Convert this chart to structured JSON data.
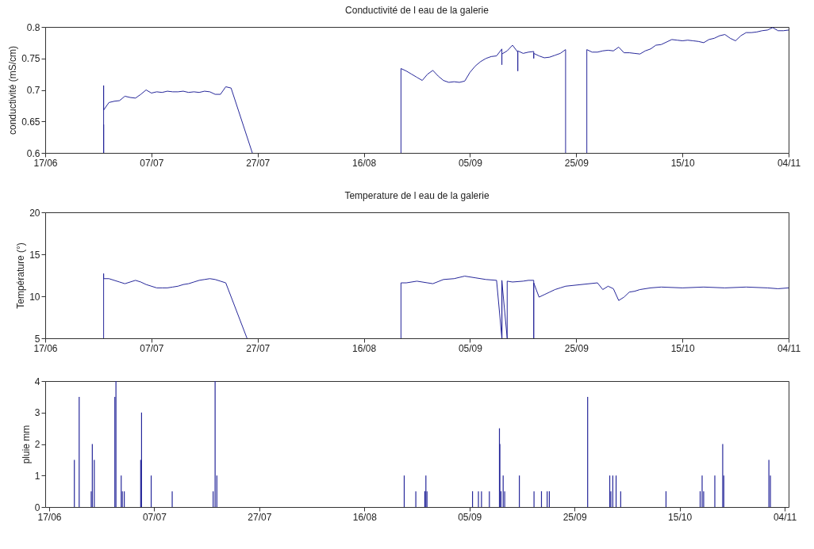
{
  "chart_data": [
    {
      "type": "line",
      "title": "Conductivité de l eau de la galerie",
      "ylabel": "conductivité (mS/cm)",
      "xlim": [
        "--06-17",
        "--11-04"
      ],
      "xticks": [
        {
          "value": "--06-17",
          "label": "17/06"
        },
        {
          "value": "--07-07",
          "label": "07/07"
        },
        {
          "value": "--07-27",
          "label": "27/07"
        },
        {
          "value": "--08-16",
          "label": "16/08"
        },
        {
          "value": "--09-05",
          "label": "05/09"
        },
        {
          "value": "--09-25",
          "label": "25/09"
        },
        {
          "value": "--10-15",
          "label": "15/10"
        },
        {
          "value": "--11-04",
          "label": "04/11"
        }
      ],
      "ylim": [
        0.6,
        0.8
      ],
      "yticks": [
        0.6,
        0.65,
        0.7,
        0.75,
        0.8
      ],
      "grid": false,
      "series": [
        {
          "color": "#26279a",
          "x": [
            "--06-28",
            "--06-28",
            "--06-28",
            "--06-28",
            "--06-28",
            "--06-29",
            "--06-30",
            "--07-01",
            "--07-02",
            "--07-03",
            "--07-04",
            "--07-05",
            "--07-06",
            "--07-07",
            "--07-08",
            "--07-09",
            "--07-10",
            "--07-11",
            "--07-12",
            "--07-13",
            "--07-14",
            "--07-15",
            "--07-16",
            "--07-17",
            "--07-18",
            "--07-19",
            "--07-20",
            "--07-21",
            "--07-22",
            "--07-26",
            "--08-01",
            "--08-23",
            "--08-23",
            "--08-24",
            "--08-25",
            "--08-26",
            "--08-27",
            "--08-28",
            "--08-29",
            "--08-30",
            "--08-31",
            "--09-01",
            "--09-02",
            "--09-03",
            "--09-04",
            "--09-05",
            "--09-06",
            "--09-07",
            "--09-08",
            "--09-09",
            "--09-10",
            "--09-11",
            "--09-11",
            "--09-11",
            "--09-12",
            "--09-13",
            "--09-14",
            "--09-14",
            "--09-14",
            "--09-15",
            "--09-16",
            "--09-17",
            "--09-17",
            "--09-17",
            "--09-18",
            "--09-19",
            "--09-20",
            "--09-21",
            "--09-22",
            "--09-23",
            "--09-23",
            "--09-25",
            "--09-27",
            "--09-27",
            "--09-28",
            "--09-29",
            "--09-30",
            "--10-01",
            "--10-02",
            "--10-03",
            "--10-04",
            "--10-05",
            "--10-06",
            "--10-07",
            "--10-08",
            "--10-09",
            "--10-10",
            "--10-11",
            "--10-12",
            "--10-13",
            "--10-14",
            "--10-15",
            "--10-16",
            "--10-17",
            "--10-18",
            "--10-19",
            "--10-20",
            "--10-21",
            "--10-22",
            "--10-23",
            "--10-24",
            "--10-25",
            "--10-26",
            "--10-27",
            "--10-28",
            "--10-29",
            "--10-30",
            "--10-31",
            "--11-01",
            "--11-02",
            "--11-03",
            "--11-04"
          ],
          "values": [
            0.6,
            0.645,
            0.6,
            0.707,
            0.668,
            0.68,
            0.682,
            0.683,
            0.69,
            0.688,
            0.687,
            0.693,
            0.7,
            0.695,
            0.697,
            0.696,
            0.698,
            0.697,
            0.697,
            0.698,
            0.696,
            0.697,
            0.696,
            0.698,
            0.697,
            0.693,
            0.693,
            0.705,
            0.703,
            0.6,
            null,
            0.6,
            0.734,
            0.73,
            0.725,
            0.72,
            0.715,
            0.725,
            0.731,
            0.722,
            0.715,
            0.712,
            0.713,
            0.712,
            0.714,
            0.728,
            0.738,
            0.745,
            0.75,
            0.753,
            0.754,
            0.765,
            0.74,
            0.757,
            0.762,
            0.771,
            0.76,
            0.73,
            0.762,
            0.758,
            0.76,
            0.761,
            0.75,
            0.758,
            0.754,
            0.751,
            0.752,
            0.755,
            0.758,
            0.764,
            0.6,
            null,
            0.6,
            0.764,
            0.76,
            0.76,
            0.762,
            0.763,
            0.762,
            0.768,
            0.759,
            0.759,
            0.758,
            0.757,
            0.762,
            0.765,
            0.771,
            0.772,
            0.776,
            0.78,
            0.779,
            0.778,
            0.779,
            0.778,
            0.777,
            0.775,
            0.78,
            0.782,
            0.786,
            0.788,
            0.782,
            0.778,
            0.786,
            0.791,
            0.791,
            0.792,
            0.794,
            0.795,
            0.799,
            0.794,
            0.794,
            0.795
          ]
        }
      ]
    },
    {
      "type": "line",
      "title": "Temperature de l eau de la galerie",
      "ylabel": "Température (°)",
      "xlim": [
        "--06-17",
        "--11-04"
      ],
      "xticks": [
        {
          "value": "--06-17",
          "label": "17/06"
        },
        {
          "value": "--07-07",
          "label": "07/07"
        },
        {
          "value": "--07-27",
          "label": "27/07"
        },
        {
          "value": "--08-16",
          "label": "16/08"
        },
        {
          "value": "--09-05",
          "label": "05/09"
        },
        {
          "value": "--09-25",
          "label": "25/09"
        },
        {
          "value": "--10-15",
          "label": "15/10"
        },
        {
          "value": "--11-04",
          "label": "04/11"
        }
      ],
      "ylim": [
        5,
        20
      ],
      "yticks": [
        5,
        10,
        15,
        20
      ],
      "grid": false,
      "series": [
        {
          "color": "#26279a",
          "x": [
            "--06-28",
            "--06-28",
            "--06-28",
            "--06-29",
            "--06-30",
            "--07-01",
            "--07-02",
            "--07-03",
            "--07-04",
            "--07-05",
            "--07-06",
            "--07-07",
            "--07-08",
            "--07-09",
            "--07-10",
            "--07-11",
            "--07-12",
            "--07-13",
            "--07-14",
            "--07-15",
            "--07-16",
            "--07-17",
            "--07-18",
            "--07-19",
            "--07-20",
            "--07-21",
            "--07-25",
            "--08-01",
            "--08-23",
            "--08-23",
            "--08-24",
            "--08-26",
            "--08-28",
            "--08-29",
            "--08-31",
            "--09-02",
            "--09-04",
            "--09-06",
            "--09-08",
            "--09-10",
            "--09-11",
            "--09-11",
            "--09-11",
            "--09-11",
            "--09-12",
            "--09-12",
            "--09-13",
            "--09-15",
            "--09-16",
            "--09-17",
            "--09-17",
            "--09-17",
            "--09-18",
            "--09-19",
            "--09-20",
            "--09-21",
            "--09-22",
            "--09-23",
            "--09-29",
            "--09-30",
            "--10-01",
            "--10-02",
            "--10-03",
            "--10-04",
            "--10-05",
            "--10-06",
            "--10-07",
            "--10-09",
            "--10-11",
            "--10-15",
            "--10-19",
            "--10-23",
            "--10-27",
            "--10-31",
            "--11-02",
            "--11-04"
          ],
          "values": [
            5,
            12.7,
            12.1,
            12.1,
            11.9,
            11.7,
            11.5,
            11.7,
            11.9,
            11.7,
            11.4,
            11.2,
            11.0,
            11.0,
            11.0,
            11.1,
            11.2,
            11.4,
            11.5,
            11.7,
            11.9,
            12.0,
            12.1,
            12.0,
            11.8,
            11.6,
            5,
            null,
            5,
            11.6,
            11.6,
            11.8,
            11.6,
            11.5,
            12.0,
            12.1,
            12.4,
            12.2,
            12.0,
            11.9,
            5,
            11.9,
            5,
            11.8,
            5,
            11.8,
            11.7,
            11.8,
            11.9,
            11.9,
            5,
            11.6,
            9.9,
            10.2,
            10.5,
            10.8,
            11.0,
            11.2,
            11.6,
            10.8,
            11.2,
            10.9,
            9.5,
            9.9,
            10.5,
            10.6,
            10.8,
            11.0,
            11.1,
            11.0,
            11.1,
            11.0,
            11.1,
            11.0,
            10.9,
            11.0
          ]
        }
      ]
    },
    {
      "type": "bar",
      "ylabel": "pluie mm",
      "xlim": [
        "--06-17",
        "--11-04"
      ],
      "xticks": [
        {
          "value": "--06-17",
          "label": "17/06"
        },
        {
          "value": "--07-07",
          "label": "07/07"
        },
        {
          "value": "--07-27",
          "label": "27/07"
        },
        {
          "value": "--08-16",
          "label": "16/08"
        },
        {
          "value": "--09-05",
          "label": "05/09"
        },
        {
          "value": "--09-25",
          "label": "25/09"
        },
        {
          "value": "--10-15",
          "label": "15/10"
        },
        {
          "value": "--11-04",
          "label": "04/11"
        }
      ],
      "ylim": [
        0,
        4
      ],
      "yticks": [
        0,
        1,
        2,
        3,
        4
      ],
      "grid": false,
      "series": [
        {
          "color": "#26279a",
          "x": [
            "--06-21T19:00",
            "--06-22T17:00",
            "--06-25T00:00",
            "--06-25T05:00",
            "--06-25T14:00",
            "--06-29T12:00",
            "--06-29T17:00",
            "--06-30T17:00",
            "--06-30T22:00",
            "--07-01T07:00",
            "--07-04T10:00",
            "--07-04T14:00",
            "--07-06T10:00",
            "--07-10T10:00",
            "--07-18T05:00",
            "--07-18T14:00",
            "--07-18T22:00",
            "--08-23T14:00",
            "--08-25T19:00",
            "--08-27T12:00",
            "--08-27T17:00",
            "--08-27T22:00",
            "--09-05T14:00",
            "--09-06T17:00",
            "--09-07T07:00",
            "--09-08T19:00",
            "--09-10T17:00",
            "--09-10T19:00",
            "--09-11T00:00",
            "--09-11T10:00",
            "--09-11T17:00",
            "--09-14T12:00",
            "--09-17T07:00",
            "--09-18T17:00",
            "--09-19T19:00",
            "--09-20T05:00",
            "--09-27T12:00",
            "--10-01T17:00",
            "--10-01T22:00",
            "--10-02T07:00",
            "--10-02T22:00",
            "--10-03T19:00",
            "--10-12T10:00",
            "--10-18T22:00",
            "--10-19T07:00",
            "--10-19T14:00",
            "--10-21T17:00",
            "--10-23T05:00",
            "--10-23T10:00",
            "--11-01T00:00",
            "--11-01T07:00"
          ],
          "values": [
            1.5,
            3.5,
            0.5,
            2,
            1.5,
            3.5,
            4,
            1,
            0.5,
            0.5,
            1.5,
            3,
            1,
            0.5,
            0.5,
            4,
            1,
            1,
            0.5,
            0.5,
            1,
            0.5,
            0.5,
            0.5,
            0.5,
            0.5,
            2.5,
            2,
            0.5,
            1,
            0.5,
            1,
            0.5,
            0.5,
            0.5,
            0.5,
            3.5,
            1,
            0.5,
            1,
            1,
            0.5,
            0.5,
            0.5,
            1,
            0.5,
            1,
            2,
            1,
            1.5,
            1
          ]
        }
      ]
    }
  ]
}
